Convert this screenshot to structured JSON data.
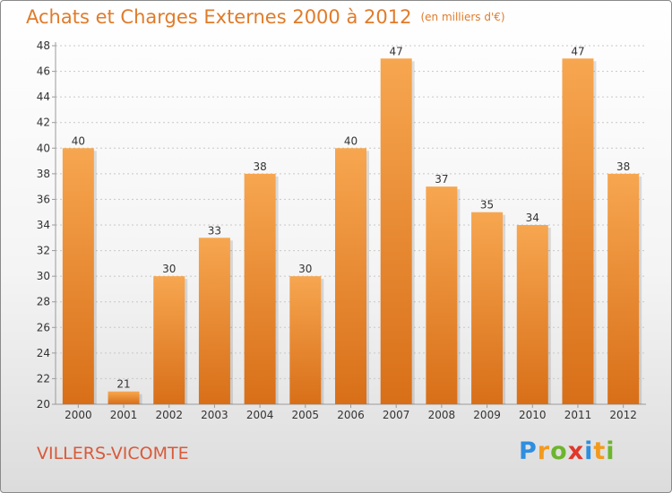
{
  "title": "Achats et Charges Externes 2000 à 2012",
  "unit": "(en milliers d'€)",
  "commune": "VILLERS-VICOMTE",
  "logo": {
    "text": "Proxiti",
    "letters": [
      {
        "ch": "P",
        "color": "#2e8ee0"
      },
      {
        "ch": "r",
        "color": "#f39a1c"
      },
      {
        "ch": "o",
        "color": "#6cb52d"
      },
      {
        "ch": "x",
        "color": "#e2372a"
      },
      {
        "ch": "i",
        "color": "#2e8ee0"
      },
      {
        "ch": "t",
        "color": "#f39a1c"
      },
      {
        "ch": "i",
        "color": "#6cb52d"
      }
    ]
  },
  "colors": {
    "bar_top": "#f7a650",
    "bar_bottom": "#d86f18",
    "axis": "#9a9a9a",
    "grid": "#c8c8c8",
    "text": "#333333"
  },
  "chart_data": {
    "type": "bar",
    "categories": [
      "2000",
      "2001",
      "2002",
      "2003",
      "2004",
      "2005",
      "2006",
      "2007",
      "2008",
      "2009",
      "2010",
      "2011",
      "2012"
    ],
    "values": [
      40,
      21,
      30,
      33,
      38,
      30,
      40,
      47,
      37,
      35,
      34,
      47,
      38
    ],
    "ylim": [
      20,
      48
    ],
    "yticks": [
      20,
      22,
      24,
      26,
      28,
      30,
      32,
      34,
      36,
      38,
      40,
      42,
      44,
      46,
      48
    ],
    "grid": true,
    "data_labels": true
  }
}
